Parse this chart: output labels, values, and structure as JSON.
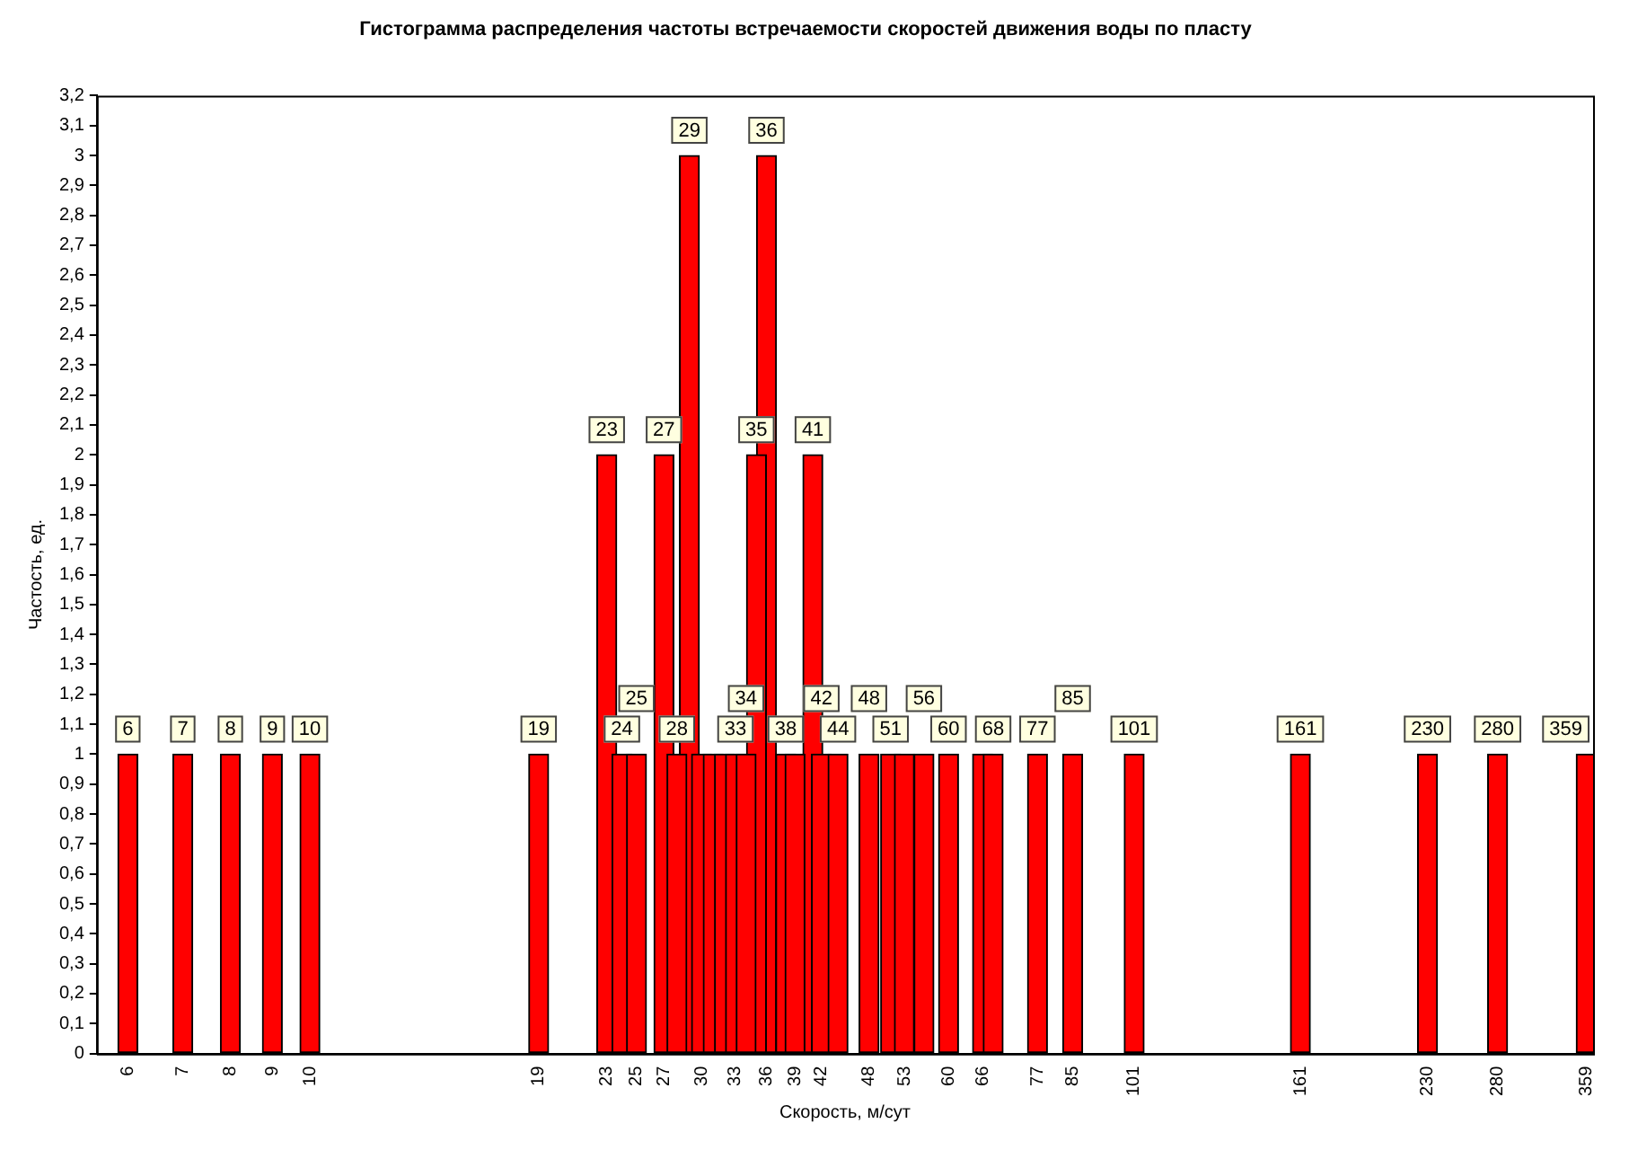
{
  "chart_data": {
    "type": "bar",
    "title": "Гистограмма распределения частоты встречаемости скоростей движения воды по пласту",
    "xlabel": "Скорость, м/сут",
    "ylabel": "Частость, ед.",
    "x": [
      6,
      7,
      8,
      9,
      10,
      19,
      23,
      24,
      25,
      27,
      28,
      29,
      30,
      31,
      32,
      33,
      34,
      35,
      36,
      38,
      39,
      41,
      42,
      44,
      48,
      51,
      53,
      56,
      60,
      66,
      68,
      77,
      85,
      101,
      161,
      230,
      280,
      359
    ],
    "values": [
      1,
      1,
      1,
      1,
      1,
      1,
      2,
      1,
      1,
      2,
      1,
      3,
      1,
      1,
      1,
      1,
      1,
      2,
      3,
      1,
      1,
      2,
      1,
      1,
      1,
      1,
      1,
      1,
      1,
      1,
      1,
      1,
      1,
      1,
      1,
      1,
      1,
      1
    ],
    "annotations": [
      {
        "text": "6",
        "x": 6,
        "y": 1
      },
      {
        "text": "7",
        "x": 7,
        "y": 1
      },
      {
        "text": "8",
        "x": 8,
        "y": 1
      },
      {
        "text": "9",
        "x": 9,
        "y": 1
      },
      {
        "text": "10",
        "x": 10,
        "y": 1
      },
      {
        "text": "19",
        "x": 19,
        "y": 1
      },
      {
        "text": "23",
        "x": 23,
        "y": 2
      },
      {
        "text": "24",
        "x": 24,
        "y": 1
      },
      {
        "text": "25",
        "x": 25,
        "y": 1
      },
      {
        "text": "27",
        "x": 27,
        "y": 2
      },
      {
        "text": "28",
        "x": 28,
        "y": 1
      },
      {
        "text": "29",
        "x": 29,
        "y": 3
      },
      {
        "text": "33",
        "x": 33,
        "y": 1
      },
      {
        "text": "34",
        "x": 34,
        "y": 1
      },
      {
        "text": "35",
        "x": 35,
        "y": 2
      },
      {
        "text": "36",
        "x": 36,
        "y": 3
      },
      {
        "text": "38",
        "x": 38,
        "y": 1
      },
      {
        "text": "41",
        "x": 41,
        "y": 2
      },
      {
        "text": "42",
        "x": 42,
        "y": 1
      },
      {
        "text": "44",
        "x": 44,
        "y": 1
      },
      {
        "text": "48",
        "x": 48,
        "y": 1
      },
      {
        "text": "51",
        "x": 51,
        "y": 1
      },
      {
        "text": "56",
        "x": 56,
        "y": 1
      },
      {
        "text": "60",
        "x": 60,
        "y": 1
      },
      {
        "text": "68",
        "x": 68,
        "y": 1
      },
      {
        "text": "77",
        "x": 77,
        "y": 1
      },
      {
        "text": "85",
        "x": 85,
        "y": 1
      },
      {
        "text": "101",
        "x": 101,
        "y": 1
      },
      {
        "text": "161",
        "x": 161,
        "y": 1
      },
      {
        "text": "230",
        "x": 230,
        "y": 1
      },
      {
        "text": "280",
        "x": 280,
        "y": 1
      },
      {
        "text": "359",
        "x": 359,
        "y": 1
      }
    ],
    "color": "#ff0000",
    "log": "x",
    "xlim": [
      5.5,
      366
    ],
    "xticks": [
      6,
      7,
      8,
      9,
      10,
      19,
      23,
      25,
      27,
      30,
      33,
      36,
      39,
      42,
      48,
      53,
      60,
      66,
      77,
      85,
      101,
      161,
      230,
      280,
      359
    ],
    "ylim": [
      0,
      3.2
    ],
    "yticks": [
      0,
      {
        "value": 0.1,
        "label": "0,1"
      },
      {
        "value": 0.2,
        "label": "0,2"
      },
      {
        "value": 0.3,
        "label": "0,3"
      },
      {
        "value": 0.4,
        "label": "0,4"
      },
      {
        "value": 0.5,
        "label": "0,5"
      },
      {
        "value": 0.6,
        "label": "0,6"
      },
      {
        "value": 0.7,
        "label": "0,7"
      },
      {
        "value": 0.8,
        "label": "0,8"
      },
      {
        "value": 0.9,
        "label": "0,9"
      },
      1,
      {
        "value": 1.1,
        "label": "1,1"
      },
      {
        "value": 1.2,
        "label": "1,2"
      },
      {
        "value": 1.3,
        "label": "1,3"
      },
      {
        "value": 1.4,
        "label": "1,4"
      },
      {
        "value": 1.5,
        "label": "1,5"
      },
      {
        "value": 1.6,
        "label": "1,6"
      },
      {
        "value": 1.7,
        "label": "1,7"
      },
      {
        "value": 1.8,
        "label": "1,8"
      },
      {
        "value": 1.9,
        "label": "1,9"
      },
      2,
      {
        "value": 2.1,
        "label": "2,1"
      },
      {
        "value": 2.2,
        "label": "2,2"
      },
      {
        "value": 2.3,
        "label": "2,3"
      },
      {
        "value": 2.4,
        "label": "2,4"
      },
      {
        "value": 2.5,
        "label": "2,5"
      },
      {
        "value": 2.6,
        "label": "2,6"
      },
      {
        "value": 2.7,
        "label": "2,7"
      },
      {
        "value": 2.8,
        "label": "2,8"
      },
      {
        "value": 2.9,
        "label": "2,9"
      },
      3,
      {
        "value": 3.1,
        "label": "3,1"
      },
      {
        "value": 3.2,
        "label": "3,2"
      }
    ],
    "grid": false,
    "legend": false
  }
}
